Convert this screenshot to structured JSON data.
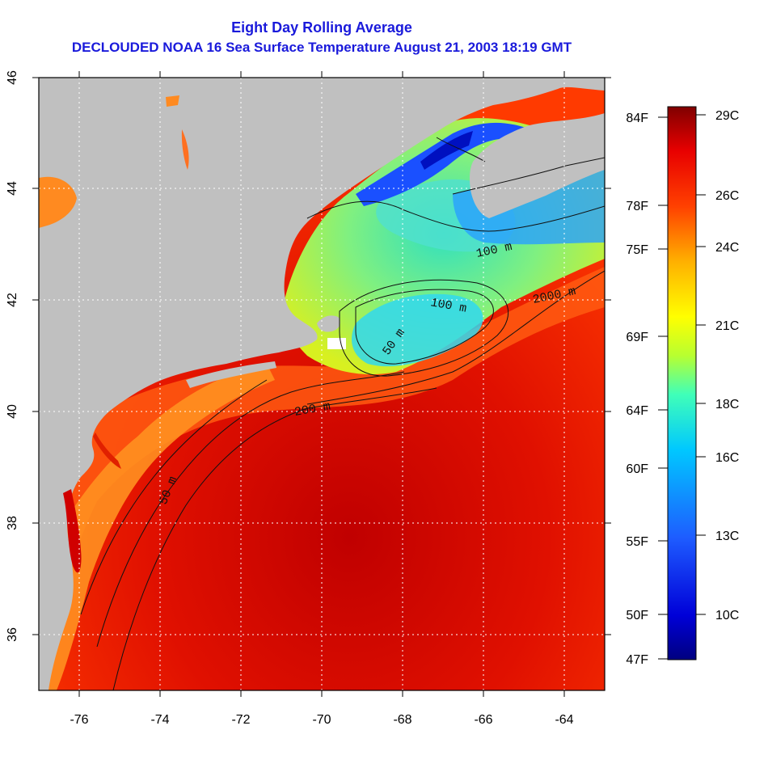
{
  "title": "Eight Day Rolling Average",
  "subtitle": "DECLOUDED NOAA 16 Sea Surface Temperature August 21, 2003 18:19 GMT",
  "map": {
    "lon_ticks": [
      "-76",
      "-74",
      "-72",
      "-70",
      "-68",
      "-66",
      "-64"
    ],
    "lat_ticks": [
      "36",
      "38",
      "40",
      "42",
      "44",
      "46"
    ],
    "depth_labels": [
      "50 m",
      "100 m",
      "200 m",
      "2000 m",
      "50 m",
      "100 m"
    ],
    "land_color": "#c0c0c0"
  },
  "colorbar": {
    "fahrenheit": [
      "84F",
      "78F",
      "75F",
      "69F",
      "64F",
      "60F",
      "55F",
      "50F",
      "47F"
    ],
    "celsius": [
      "29C",
      "26C",
      "24C",
      "21C",
      "18C",
      "16C",
      "13C",
      "10C"
    ]
  }
}
